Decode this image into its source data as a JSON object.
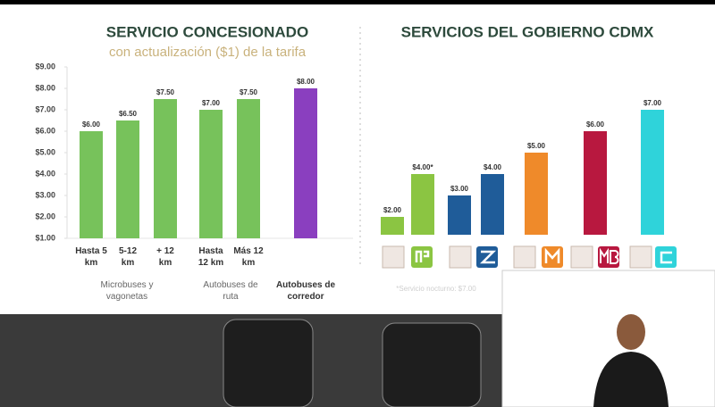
{
  "chart_data": [
    {
      "type": "bar",
      "title": "SERVICIO CONCESIONADO",
      "subtitle": "con actualización ($1) de la tarifa",
      "categories": [
        "Hasta 5 km",
        "5-12 km",
        "+ 12 km",
        "Hasta 12 km",
        "Más 12 km",
        null
      ],
      "groups": [
        "Microbuses y vagonetas",
        "Autobuses de ruta",
        "Autobuses de corredor"
      ],
      "values": [
        6,
        6.5,
        7.5,
        7,
        7.5,
        8
      ],
      "value_labels": [
        "$6.00",
        "$6.50",
        "$7.50",
        "$7.00",
        "$7.50",
        "$8.00"
      ],
      "colors": [
        "#77c25b",
        "#77c25b",
        "#77c25b",
        "#77c25b",
        "#77c25b",
        "#8a3fbf"
      ],
      "ylim": [
        1,
        9
      ],
      "yticks": [
        {
          "value": 1,
          "label": "$1.00"
        },
        {
          "value": 2,
          "label": "$2.00"
        },
        {
          "value": 3,
          "label": "$3.00"
        },
        {
          "value": 4,
          "label": "$4.00"
        },
        {
          "value": 5,
          "label": "$5.00"
        },
        {
          "value": 6,
          "label": "$6.00"
        },
        {
          "value": 7,
          "label": "$7.00"
        },
        {
          "value": 8,
          "label": "$8.00"
        },
        {
          "value": 9,
          "label": "$9.00"
        }
      ],
      "grid": false
    },
    {
      "type": "bar",
      "title": "SERVICIOS DEL GOBIERNO CDMX",
      "values": [
        2,
        4,
        3,
        4,
        5,
        6,
        7
      ],
      "value_labels": [
        "$2.00",
        "$4.00*",
        "$3.00",
        "$4.00",
        "$5.00",
        "$6.00",
        "$7.00"
      ],
      "colors": [
        "#8bc542",
        "#8bc542",
        "#1f5c99",
        "#1f5c99",
        "#ef8a2a",
        "#b8183f",
        "#2fd3da"
      ],
      "ylim": [
        1,
        9
      ],
      "note": "*Servicio nocturno: $7.00",
      "grid": false
    }
  ]
}
